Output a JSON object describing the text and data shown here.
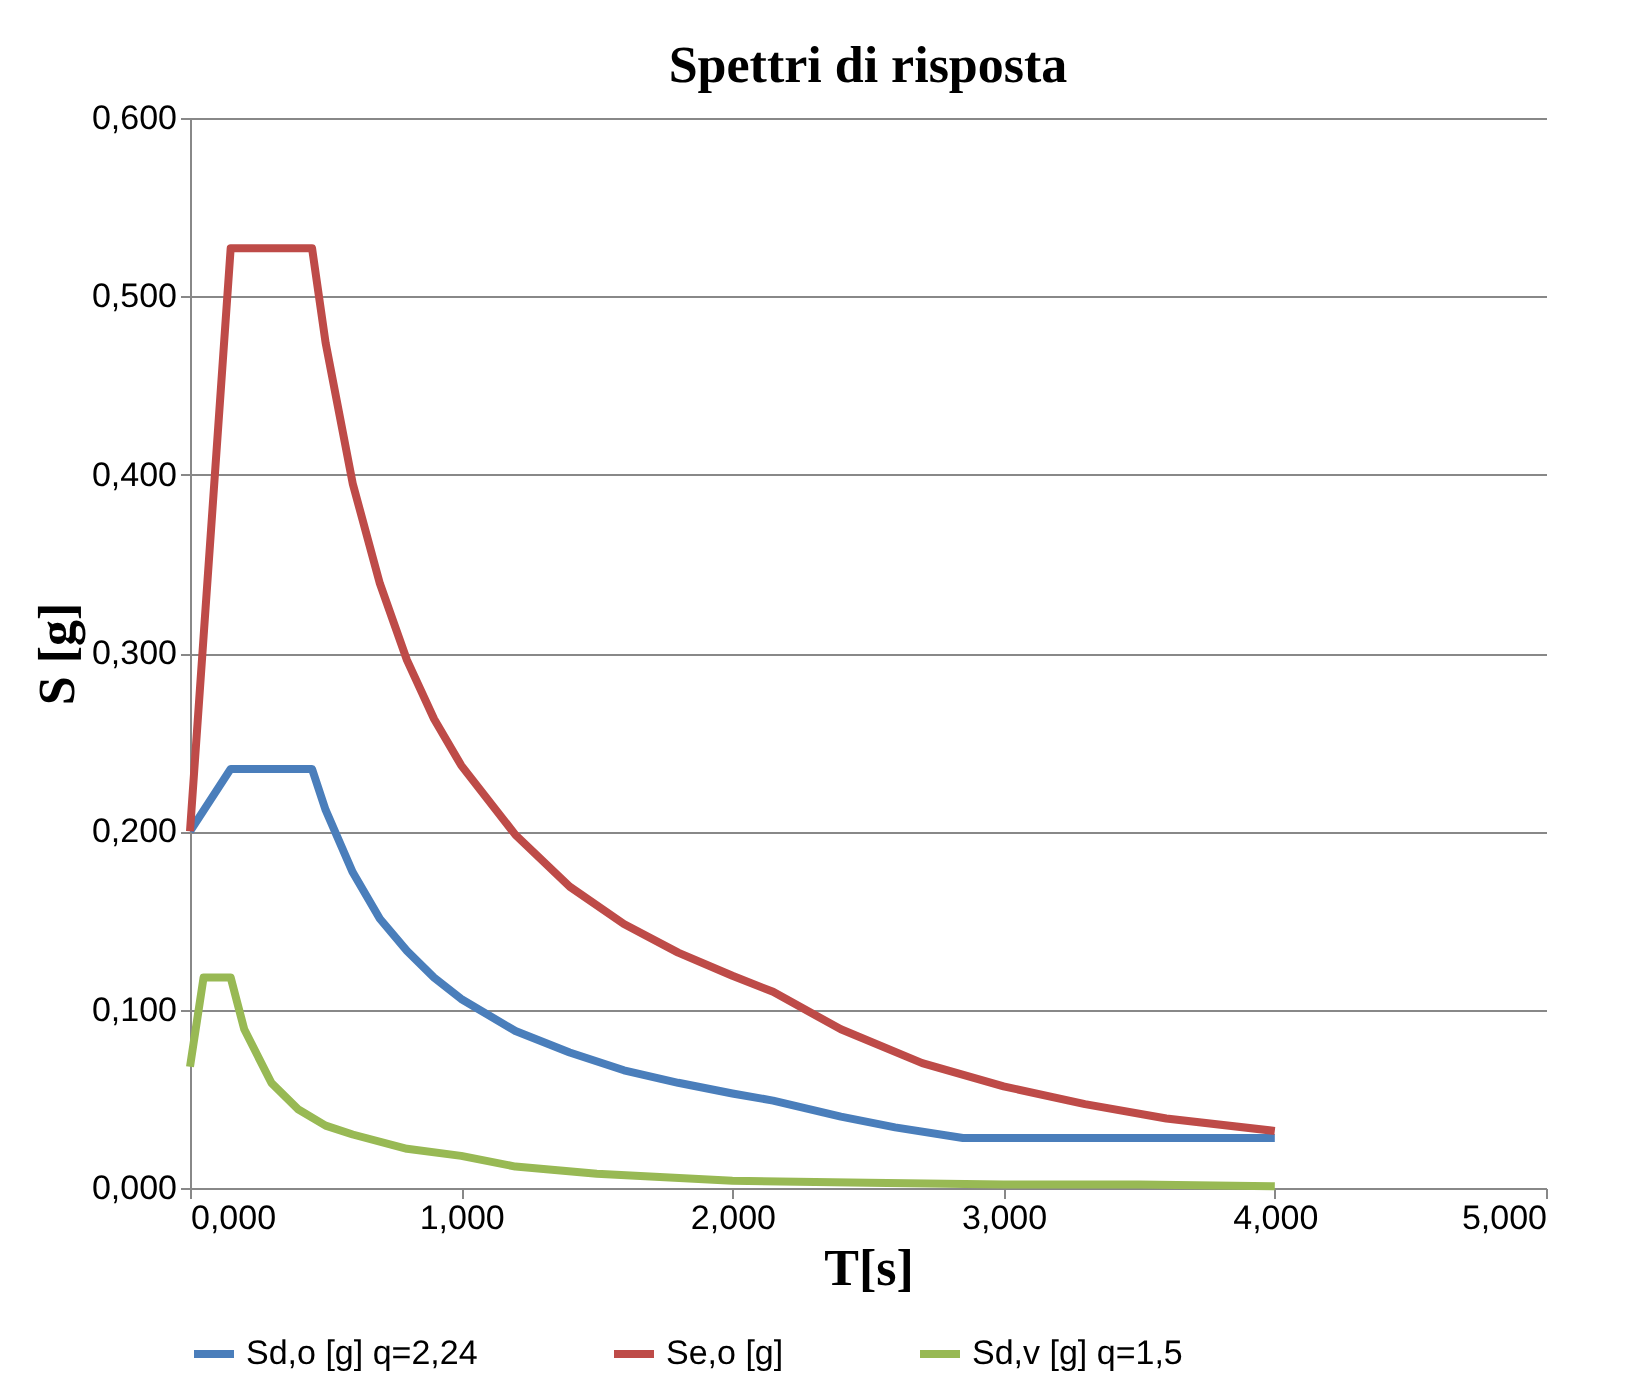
{
  "chart_data": {
    "type": "line",
    "title": "Spettri di risposta",
    "xlabel": "T[s]",
    "ylabel": "S [g]",
    "xlim": [
      0,
      5
    ],
    "ylim": [
      0,
      0.6
    ],
    "xticks": [
      {
        "value": 0,
        "label": "0,000"
      },
      {
        "value": 1,
        "label": "1,000"
      },
      {
        "value": 2,
        "label": "2,000"
      },
      {
        "value": 3,
        "label": "3,000"
      },
      {
        "value": 4,
        "label": "4,000"
      },
      {
        "value": 5,
        "label": "5,000"
      }
    ],
    "yticks": [
      {
        "value": 0,
        "label": "0,000"
      },
      {
        "value": 0.1,
        "label": "0,100"
      },
      {
        "value": 0.2,
        "label": "0,200"
      },
      {
        "value": 0.3,
        "label": "0,300"
      },
      {
        "value": 0.4,
        "label": "0,400"
      },
      {
        "value": 0.5,
        "label": "0,500"
      },
      {
        "value": 0.6,
        "label": "0,600"
      }
    ],
    "grid": "y",
    "legend": "bottom",
    "marker": "none",
    "line_style": "solid",
    "series": [
      {
        "name": "Sd,o [g] q=2,24",
        "color": "#4a7ebb",
        "x": [
          0,
          0.15,
          0.45,
          0.5,
          0.6,
          0.7,
          0.8,
          0.9,
          1.0,
          1.2,
          1.4,
          1.6,
          1.8,
          2.0,
          2.15,
          2.4,
          2.6,
          2.85,
          4.0
        ],
        "values": [
          0.2,
          0.235,
          0.235,
          0.212,
          0.177,
          0.151,
          0.133,
          0.118,
          0.106,
          0.088,
          0.076,
          0.066,
          0.059,
          0.053,
          0.049,
          0.04,
          0.034,
          0.028,
          0.028
        ]
      },
      {
        "name": "Se,o [g]",
        "color": "#be4b48",
        "x": [
          0,
          0.15,
          0.45,
          0.5,
          0.6,
          0.7,
          0.8,
          0.9,
          1.0,
          1.2,
          1.4,
          1.6,
          1.8,
          2.0,
          2.15,
          2.4,
          2.7,
          3.0,
          3.3,
          3.6,
          4.0
        ],
        "values": [
          0.2,
          0.527,
          0.527,
          0.474,
          0.395,
          0.339,
          0.296,
          0.263,
          0.237,
          0.198,
          0.169,
          0.148,
          0.132,
          0.119,
          0.11,
          0.089,
          0.07,
          0.057,
          0.047,
          0.039,
          0.032
        ]
      },
      {
        "name": "Sd,v [g] q=1,5",
        "color": "#98b954",
        "x": [
          0,
          0.05,
          0.15,
          0.2,
          0.3,
          0.4,
          0.5,
          0.6,
          0.8,
          1.0,
          1.2,
          1.5,
          2.0,
          2.5,
          3.0,
          3.5,
          4.0
        ],
        "values": [
          0.068,
          0.118,
          0.118,
          0.089,
          0.059,
          0.044,
          0.035,
          0.03,
          0.022,
          0.018,
          0.012,
          0.008,
          0.004,
          0.003,
          0.002,
          0.002,
          0.001
        ]
      }
    ]
  }
}
